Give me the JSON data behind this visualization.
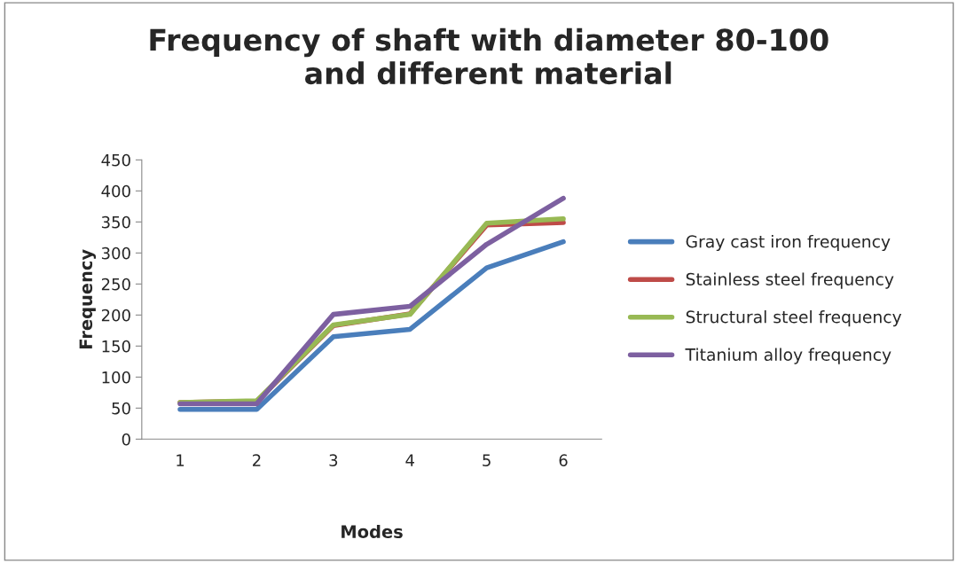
{
  "chart_data": {
    "type": "line",
    "title": "Frequency of shaft with diameter 80-100\nand different material",
    "xlabel": "Modes",
    "ylabel": "Frequency",
    "categories": [
      "1",
      "2",
      "3",
      "4",
      "5",
      "6"
    ],
    "series": [
      {
        "name": "Gray cast iron frequency",
        "color": "#4a7ebb",
        "values": [
          48,
          48,
          165,
          177,
          276,
          318
        ]
      },
      {
        "name": "Stainless steel frequency",
        "color": "#be4b48",
        "values": [
          59,
          61,
          183,
          202,
          345,
          349
        ]
      },
      {
        "name": "Structural steel frequency",
        "color": "#98b954",
        "values": [
          59,
          62,
          184,
          201,
          348,
          355
        ]
      },
      {
        "name": "Titanium alloy frequency",
        "color": "#7d60a0",
        "values": [
          57,
          57,
          201,
          214,
          314,
          388
        ]
      }
    ],
    "ylim": [
      0,
      450
    ],
    "yticks": [
      0,
      50,
      100,
      150,
      200,
      250,
      300,
      350,
      400,
      450
    ],
    "grid": false,
    "legend": "right",
    "marker": "none",
    "line_style": "solid"
  }
}
